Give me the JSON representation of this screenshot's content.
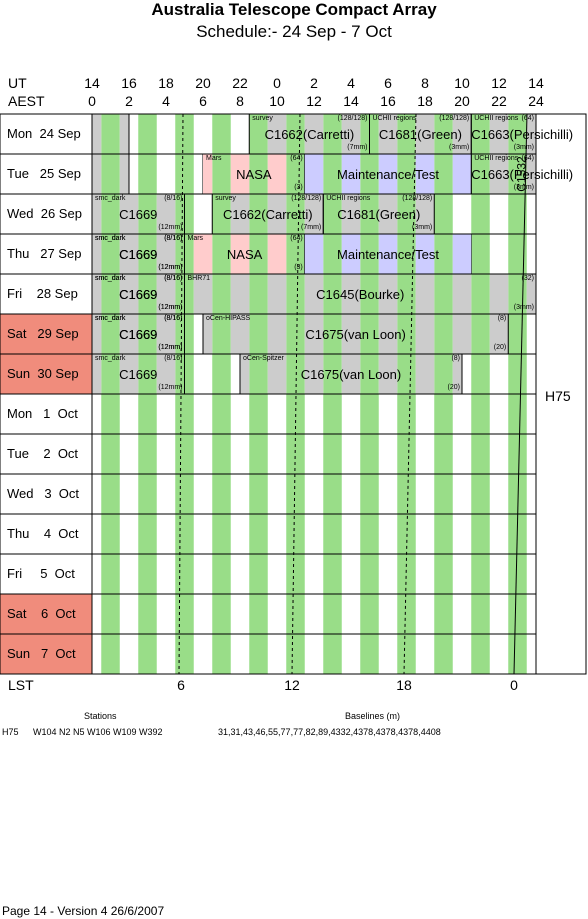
{
  "header": {
    "title": "Australia Telescope Compact Array",
    "subtitle": "Schedule:- 24 Sep - 7  Oct",
    "ut_label": "UT",
    "aest_label": "AEST",
    "ut_ticks": [
      "14",
      "16",
      "18",
      "20",
      "22",
      "0",
      "2",
      "4",
      "6",
      "8",
      "10",
      "12",
      "14"
    ],
    "aest_ticks": [
      "0",
      "2",
      "4",
      "6",
      "8",
      "10",
      "12",
      "14",
      "16",
      "18",
      "20",
      "22",
      "24"
    ]
  },
  "days": [
    {
      "label": "Mon  24 Sep",
      "weekend": false
    },
    {
      "label": "Tue   25 Sep",
      "weekend": false
    },
    {
      "label": "Wed  26 Sep",
      "weekend": false
    },
    {
      "label": "Thu   27 Sep",
      "weekend": false
    },
    {
      "label": "Fri    28 Sep",
      "weekend": false
    },
    {
      "label": "Sat   29 Sep",
      "weekend": true
    },
    {
      "label": "Sun  30 Sep",
      "weekend": true
    },
    {
      "label": "Mon   1  Oct",
      "weekend": false
    },
    {
      "label": "Tue    2  Oct",
      "weekend": false
    },
    {
      "label": "Wed   3  Oct",
      "weekend": false
    },
    {
      "label": "Thu    4  Oct",
      "weekend": false
    },
    {
      "label": "Fri     5  Oct",
      "weekend": false
    },
    {
      "label": "Sat    6  Oct",
      "weekend": true
    },
    {
      "label": "Sun   7  Oct",
      "weekend": true
    }
  ],
  "blocks": [
    {
      "day": 0,
      "start": 8.5,
      "end": 15.0,
      "label": "C1662(Carretti)",
      "tl": "survey",
      "tr": "(128/128)",
      "br": "(7mm)"
    },
    {
      "day": 0,
      "start": 15.0,
      "end": 20.5,
      "label": "C1681(Green)",
      "tl": "UCHII regions",
      "tr": "(128/128)",
      "br": "(3mm)"
    },
    {
      "day": 0,
      "start": 20.5,
      "end": 26.0,
      "label": "C1663(Persichilli)",
      "tl": "UCHII regions",
      "tr": "(64)",
      "br": "(3mm)"
    },
    {
      "day": 1,
      "start": 6.0,
      "end": 11.5,
      "label": "NASA",
      "tl": "Mars",
      "tr": "(64)",
      "br": "(3)"
    },
    {
      "day": 1,
      "start": 11.5,
      "end": 20.5,
      "label": "Maintenance/Test",
      "tl": "",
      "tr": "",
      "br": ""
    },
    {
      "day": 1,
      "start": 20.5,
      "end": 26.0,
      "label": "C1663(Persichilli)",
      "tl": "UCHII regions",
      "tr": "(64)",
      "br": "(3mm)"
    },
    {
      "day": 2,
      "start": 6.5,
      "end": 12.5,
      "label": "C1662(Carretti)",
      "tl": "survey",
      "tr": "(128/128)",
      "br": "(7mm)"
    },
    {
      "day": 2,
      "start": 12.5,
      "end": 18.5,
      "label": "C1681(Green)",
      "tl": "UCHII regions",
      "tr": "(128/128)",
      "br": "(3mm)"
    },
    {
      "day": 2,
      "start": 24.0,
      "end": 29.0,
      "label": "C1669",
      "tl": "smc_dark",
      "tr": "(8/16)",
      "br": "(12mm)"
    },
    {
      "day": 3,
      "start": 0.0,
      "end": 5.0,
      "label": "C1669",
      "tl": "smc_dark",
      "tr": "(8/16)",
      "br": "(12mm)"
    },
    {
      "day": 3,
      "start": 5.0,
      "end": 11.5,
      "label": "NASA",
      "tl": "Mars",
      "tr": "(64)",
      "br": "(3)"
    },
    {
      "day": 3,
      "start": 11.5,
      "end": 20.5,
      "label": "Maintenance/Test",
      "tl": "",
      "tr": "",
      "br": ""
    },
    {
      "day": 3,
      "start": 24.0,
      "end": 29.0,
      "label": "C1669",
      "tl": "smc_dark",
      "tr": "(8/16)",
      "br": "(12mm)"
    },
    {
      "day": 4,
      "start": 0.0,
      "end": 5.0,
      "label": "C1669",
      "tl": "smc_dark",
      "tr": "(8/16)",
      "br": "(12mm)"
    },
    {
      "day": 4,
      "start": 5.0,
      "end": 24.0,
      "label": "C1645(Bourke)",
      "tl": "BHR71",
      "tr": "(32)",
      "br": "(3mm)"
    },
    {
      "day": 4,
      "start": 24.0,
      "end": 29.0,
      "label": "C1669",
      "tl": "smc_dark",
      "tr": "(8/16)",
      "br": "(12mm)"
    },
    {
      "day": 5,
      "start": 0.0,
      "end": 5.0,
      "label": "C1669",
      "tl": "smc_dark",
      "tr": "(8/16)",
      "br": "(12mm)"
    },
    {
      "day": 5,
      "start": 6.0,
      "end": 22.5,
      "label": "C1675(van Loon)",
      "tl": "oCen-HIPASS",
      "tr": "(8)",
      "br": "(20)"
    },
    {
      "day": 5,
      "start": 24.0,
      "end": 29.0,
      "label": "C1669",
      "tl": "smc_dark",
      "tr": "(8/16)",
      "br": "(12mm)"
    },
    {
      "day": 6,
      "start": 0.0,
      "end": 5.0,
      "label": "C1669",
      "tl": "smc_dark",
      "tr": "(8/16)",
      "br": "(12mm)"
    },
    {
      "day": 6,
      "start": 8.0,
      "end": 20.0,
      "label": "C1675(van Loon)",
      "tl": "oCen-Spitzer",
      "tr": "(8)",
      "br": "(20)"
    }
  ],
  "side_labels": {
    "c1532": "C1532",
    "h75": "H75"
  },
  "lst": {
    "label": "LST",
    "ticks": [
      "6",
      "12",
      "18",
      "0"
    ]
  },
  "footer": {
    "stations_title": "Stations",
    "baselines_title": "Baselines (m)",
    "config": "H75",
    "stations": "W104 N2 N5 W106 W109 W392",
    "baselines": "31,31,43,46,55,77,77,82,89,4332,4378,4378,4378,4408",
    "page": "Page 14 - Version 4  26/6/2007"
  },
  "colors": {
    "green": "#99dd88",
    "gray": "#cccccc",
    "pink": "#ffcccc",
    "blue": "#ccccff",
    "weekend": "#f08c7c"
  }
}
